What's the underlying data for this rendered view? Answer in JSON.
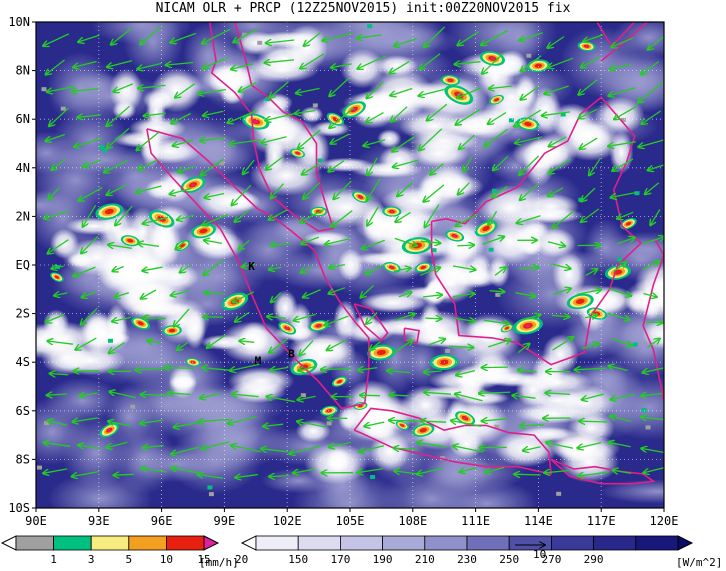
{
  "title": "NICAM OLR + PRCP (12Z25NOV2015) init:00Z20NOV2015 fix",
  "map": {
    "lon_range": [
      90,
      120
    ],
    "lat_range": [
      -10,
      10
    ],
    "x_ticks": [
      "90E",
      "93E",
      "96E",
      "99E",
      "102E",
      "105E",
      "108E",
      "111E",
      "114E",
      "117E",
      "120E"
    ],
    "y_ticks": [
      "10N",
      "8N",
      "6N",
      "4N",
      "2N",
      "EQ",
      "2S",
      "4S",
      "6S",
      "8S",
      "10S"
    ],
    "grid": "dotted",
    "station_labels": [
      {
        "text": "K",
        "lon": 100.3,
        "lat": -0.2
      },
      {
        "text": "M",
        "lon": 100.6,
        "lat": -4.1
      },
      {
        "text": "B",
        "lon": 102.2,
        "lat": -3.8
      }
    ],
    "colors": {
      "coastline": "#e0208a",
      "wind_vector": "#22cc22",
      "frame": "#000000"
    }
  },
  "prcp_legend": {
    "ticks": [
      "1",
      "3",
      "5",
      "10",
      "15",
      "20"
    ],
    "unit": "[mm/h]",
    "colors": [
      "#ffffff",
      "#a0a0a0",
      "#00c080",
      "#f6ec80",
      "#f3a020",
      "#e82010",
      "#e020a0"
    ]
  },
  "olr_legend": {
    "ticks": [
      "150",
      "170",
      "190",
      "210",
      "230",
      "250",
      "270",
      "290"
    ],
    "unit": "[W/m^2]",
    "ref_vector": "10",
    "colors": [
      "#ffffff",
      "#eeeef8",
      "#dcdcf0",
      "#c4c4e6",
      "#aaaad8",
      "#9090ca",
      "#7070ba",
      "#5050a8",
      "#3a3a9a",
      "#28288a",
      "#18187a",
      "#0a0a6a"
    ]
  }
}
